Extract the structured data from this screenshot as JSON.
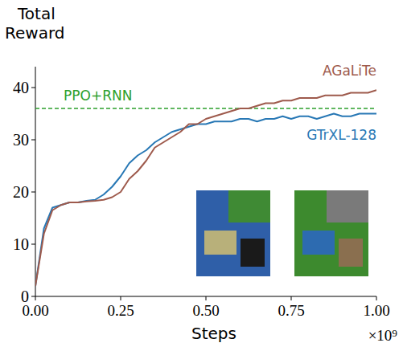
{
  "chart_data": {
    "type": "line",
    "x_label": "Steps",
    "y_label": "Total Reward",
    "x_multiplier_label": "×10⁹",
    "xlim": [
      0,
      1
    ],
    "ylim": [
      0,
      44
    ],
    "xticks": [
      {
        "value": 0,
        "label": "0.00"
      },
      {
        "value": 0.25,
        "label": "0.25"
      },
      {
        "value": 0.5,
        "label": "0.50"
      },
      {
        "value": 0.75,
        "label": "0.75"
      },
      {
        "value": 1,
        "label": "1.00"
      }
    ],
    "yticks": [
      0,
      10,
      20,
      30,
      40
    ],
    "grid": false,
    "x": [
      0,
      0.025,
      0.05,
      0.075,
      0.1,
      0.125,
      0.15,
      0.175,
      0.2,
      0.225,
      0.25,
      0.275,
      0.3,
      0.325,
      0.35,
      0.375,
      0.4,
      0.425,
      0.45,
      0.475,
      0.5,
      0.525,
      0.55,
      0.575,
      0.6,
      0.625,
      0.65,
      0.675,
      0.7,
      0.725,
      0.75,
      0.775,
      0.8,
      0.825,
      0.85,
      0.875,
      0.9,
      0.925,
      0.95,
      0.975,
      1
    ],
    "series": [
      {
        "name": "AGaLiTe",
        "color": "#9e5a4c",
        "line_style": "solid",
        "values": [
          2,
          12,
          16.5,
          17.5,
          18,
          18,
          18.2,
          18.3,
          18.5,
          19,
          20,
          22.5,
          24,
          26,
          28.5,
          29.5,
          30.5,
          31.5,
          33,
          33,
          34,
          34.5,
          35,
          35.5,
          36,
          36,
          36.5,
          37,
          37,
          37.5,
          37.5,
          38,
          38,
          38,
          38.5,
          38.5,
          38.5,
          39,
          39,
          39,
          39.5
        ]
      },
      {
        "name": "GTrXL-128",
        "color": "#2878b5",
        "line_style": "solid",
        "values": [
          2,
          13,
          17,
          17.5,
          18,
          18,
          18.3,
          18.5,
          19.5,
          21,
          23,
          25.5,
          27,
          28,
          29.5,
          30.5,
          31.5,
          32,
          32.5,
          33,
          33,
          33.5,
          33.5,
          33.5,
          34,
          34,
          33.5,
          34,
          34,
          34.5,
          34,
          34.5,
          34.5,
          34,
          34.5,
          35,
          34.5,
          34.5,
          35,
          35,
          35
        ]
      },
      {
        "name": "PPO+RNN",
        "color": "#2ca02c",
        "line_style": "dashed",
        "x": [
          0,
          1
        ],
        "values": [
          36,
          36
        ]
      }
    ]
  }
}
